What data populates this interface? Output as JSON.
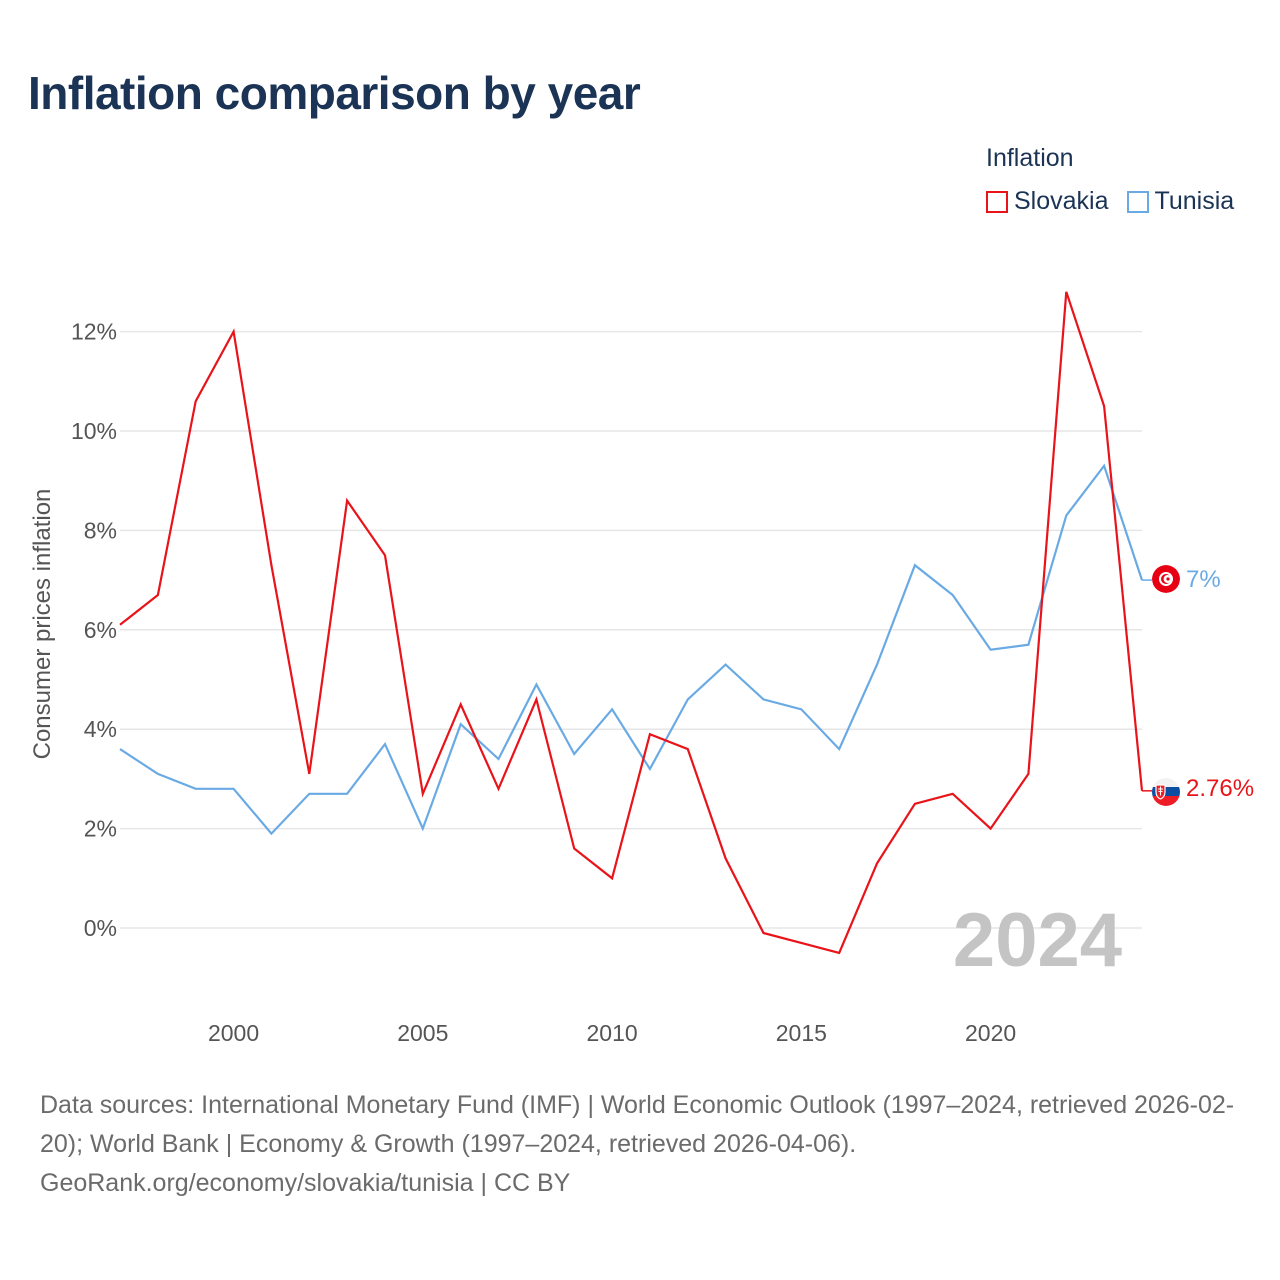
{
  "title": "Inflation comparison by year",
  "legend": {
    "title": "Inflation",
    "items": [
      {
        "label": "Slovakia",
        "color": "#e8141a"
      },
      {
        "label": "Tunisia",
        "color": "#6aaae4"
      }
    ]
  },
  "source": {
    "line1": "Data sources: International Monetary Fund (IMF) | World Economic Outlook (1997–2024, retrieved 2026-02-20); World Bank | Economy & Growth (1997–2024, retrieved 2026-04-06).",
    "line2": "GeoRank.org/economy/slovakia/tunisia | CC BY"
  },
  "chart_data": {
    "type": "line",
    "title": "Inflation comparison by year",
    "xlabel": "",
    "ylabel": "Consumer prices inflation",
    "xlim": [
      1997,
      2024
    ],
    "ylim": [
      -1.5,
      13
    ],
    "x_ticks": [
      2000,
      2005,
      2010,
      2015,
      2020
    ],
    "y_ticks": [
      0,
      2,
      4,
      6,
      8,
      10,
      12
    ],
    "y_tick_labels": [
      "0%",
      "2%",
      "4%",
      "6%",
      "8%",
      "10%",
      "12%"
    ],
    "grid": true,
    "current_year_label": "2024",
    "x": [
      1997,
      1998,
      1999,
      2000,
      2001,
      2002,
      2003,
      2004,
      2005,
      2006,
      2007,
      2008,
      2009,
      2010,
      2011,
      2012,
      2013,
      2014,
      2015,
      2016,
      2017,
      2018,
      2019,
      2020,
      2021,
      2022,
      2023,
      2024
    ],
    "series": [
      {
        "name": "Slovakia",
        "color": "#e8141a",
        "end_label": "2.76%",
        "flag_icon": "slovakia-flag-icon",
        "values": [
          6.1,
          6.7,
          10.6,
          12.0,
          7.3,
          3.1,
          8.6,
          7.5,
          2.7,
          4.5,
          2.8,
          4.6,
          1.6,
          1.0,
          3.9,
          3.6,
          1.4,
          -0.1,
          -0.3,
          -0.5,
          1.3,
          2.5,
          2.7,
          2.0,
          3.1,
          12.8,
          10.5,
          2.76
        ]
      },
      {
        "name": "Tunisia",
        "color": "#6aaae4",
        "end_label": "7%",
        "flag_icon": "tunisia-flag-icon",
        "values": [
          3.6,
          3.1,
          2.8,
          2.8,
          1.9,
          2.7,
          2.7,
          3.7,
          2.0,
          4.1,
          3.4,
          4.9,
          3.5,
          4.4,
          3.2,
          4.6,
          5.3,
          4.6,
          4.4,
          3.6,
          5.3,
          7.3,
          6.7,
          5.6,
          5.7,
          8.3,
          9.3,
          7.0
        ]
      }
    ]
  }
}
